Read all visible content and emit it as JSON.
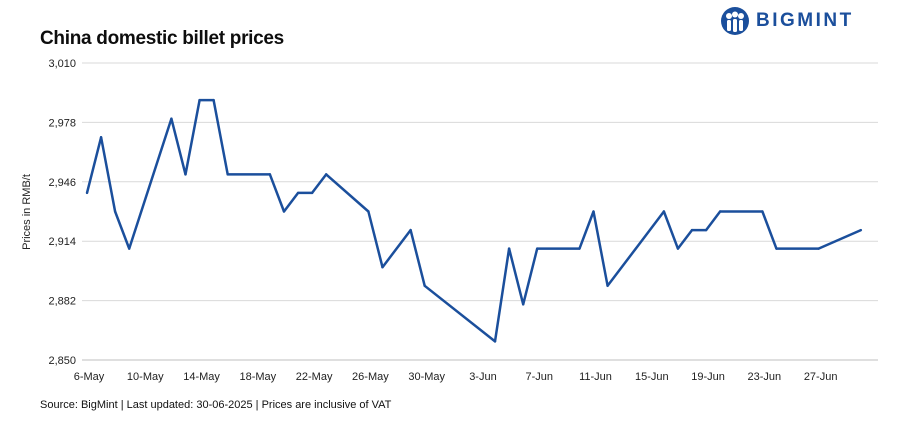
{
  "chart_data": {
    "type": "line",
    "title": "China domestic billet prices",
    "ylabel": "Prices in RMB/t",
    "xlabel": "",
    "ylim": [
      2850,
      3010
    ],
    "yticks": [
      "3,010",
      "2,978",
      "2,946",
      "2,914",
      "2,882",
      "2,850"
    ],
    "ytick_values": [
      3010,
      2978,
      2946,
      2914,
      2882,
      2850
    ],
    "xticks": [
      "6-May",
      "10-May",
      "14-May",
      "18-May",
      "22-May",
      "26-May",
      "30-May",
      "3-Jun",
      "7-Jun",
      "11-Jun",
      "15-Jun",
      "19-Jun",
      "23-Jun",
      "27-Jun"
    ],
    "grid": true,
    "legend": "none",
    "line_color": "#1b4f9c",
    "series": [
      {
        "x": [
          "6-May",
          "7-May",
          "8-May",
          "9-May",
          "12-May",
          "13-May",
          "14-May",
          "15-May",
          "16-May",
          "19-May",
          "20-May",
          "21-May",
          "22-May",
          "23-May",
          "26-May",
          "27-May",
          "29-May",
          "30-May",
          "4-Jun",
          "5-Jun",
          "6-Jun",
          "7-Jun",
          "10-Jun",
          "11-Jun",
          "12-Jun",
          "16-Jun",
          "17-Jun",
          "18-Jun",
          "19-Jun",
          "20-Jun",
          "23-Jun",
          "24-Jun",
          "27-Jun",
          "30-Jun"
        ],
        "day_index": [
          0,
          1,
          2,
          3,
          6,
          7,
          8,
          9,
          10,
          13,
          14,
          15,
          16,
          17,
          20,
          21,
          23,
          24,
          29,
          30,
          31,
          32,
          35,
          36,
          37,
          41,
          42,
          43,
          44,
          45,
          48,
          49,
          52,
          55
        ],
        "values": [
          2940,
          2970,
          2930,
          2910,
          2980,
          2950,
          2990,
          2990,
          2950,
          2950,
          2930,
          2940,
          2940,
          2950,
          2930,
          2900,
          2920,
          2890,
          2860,
          2910,
          2880,
          2910,
          2910,
          2930,
          2890,
          2930,
          2910,
          2920,
          2920,
          2930,
          2930,
          2910,
          2910,
          2920
        ]
      }
    ]
  },
  "brand": {
    "name": "BIGMINT",
    "color": "#1b4f9c"
  },
  "footer": {
    "source": "Source: BigMint | Last updated: 30-06-2025 | Prices are inclusive of VAT"
  }
}
